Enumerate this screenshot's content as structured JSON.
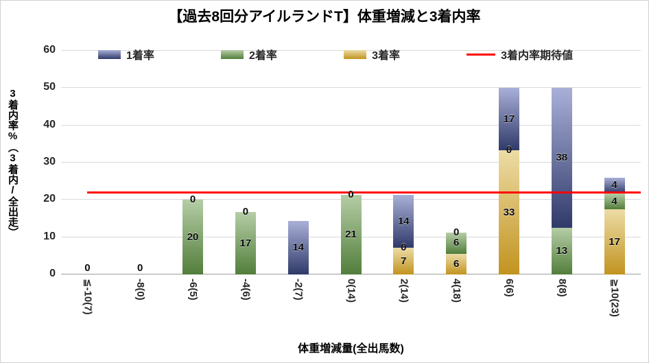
{
  "title": "【過去8回分アイルランドT】体重増減と3着内率",
  "y_axis": {
    "title": "3着内率%（3着内/全出走）",
    "ticks": [
      0,
      10,
      20,
      30,
      40,
      50,
      60
    ],
    "max": 60
  },
  "x_axis": {
    "title": "体重増減量(全出馬数)"
  },
  "legend": [
    {
      "key": "first-place-rate",
      "label": "1着率",
      "type": "gradient",
      "from": "#303a69",
      "to": "#a9b0d8"
    },
    {
      "key": "second-place-rate",
      "label": "2着率",
      "type": "gradient",
      "from": "#527e3b",
      "to": "#b5cda6"
    },
    {
      "key": "third-place-rate",
      "label": "3着率",
      "type": "gradient",
      "from": "#c2931f",
      "to": "#ecdca6"
    },
    {
      "key": "expected-top3-rate",
      "label": "3着内率期待値",
      "type": "line",
      "color": "#ff0000"
    }
  ],
  "chart_data": {
    "type": "bar",
    "stacked": true,
    "title": "【過去8回分アイルランドT】体重増減と3着内率",
    "xlabel": "体重増減量(全出馬数)",
    "ylabel": "3着内率%（3着内/全出走）",
    "ylim": [
      0,
      60
    ],
    "grid": true,
    "legend_position": "top",
    "categories": [
      "≦-10(7)",
      "-8(0)",
      "-6(5)",
      "-4(6)",
      "-2(7)",
      "0(14)",
      "2(14)",
      "4(18)",
      "6(6)",
      "8(8)",
      "≧10(23)"
    ],
    "series": [
      {
        "key": "third-place-rate",
        "name": "3着率",
        "stack_position": "bottom",
        "color_from": "#c2931f",
        "color_to": "#ecdca6",
        "values": [
          0,
          0,
          0,
          0,
          0,
          0,
          7.1,
          5.6,
          33.3,
          0,
          17.4
        ],
        "labels": [
          "0",
          "0",
          "",
          "",
          "",
          "",
          "7",
          "6",
          "33",
          "",
          "17"
        ]
      },
      {
        "key": "second-place-rate",
        "name": "2着率",
        "stack_position": "middle",
        "color_from": "#527e3b",
        "color_to": "#b5cda6",
        "values": [
          0,
          0,
          20,
          16.7,
          0,
          21.4,
          0,
          5.6,
          0,
          12.5,
          4.3
        ],
        "labels": [
          "",
          "",
          "20",
          "17",
          "",
          "21",
          "0",
          "6",
          "0",
          "13",
          "4"
        ]
      },
      {
        "key": "first-place-rate",
        "name": "1着率",
        "stack_position": "top",
        "color_from": "#303a69",
        "color_to": "#a9b0d8",
        "values": [
          0,
          0,
          0,
          0,
          14.3,
          0,
          14.3,
          0,
          16.7,
          37.5,
          4.3
        ],
        "labels": [
          "",
          "",
          "0",
          "0",
          "14",
          "0",
          "14",
          "0",
          "17",
          "38",
          "4"
        ]
      }
    ],
    "reference_line": {
      "key": "expected-top3-rate",
      "name": "3着内率期待値",
      "value": 22,
      "color": "#ff0000"
    }
  }
}
